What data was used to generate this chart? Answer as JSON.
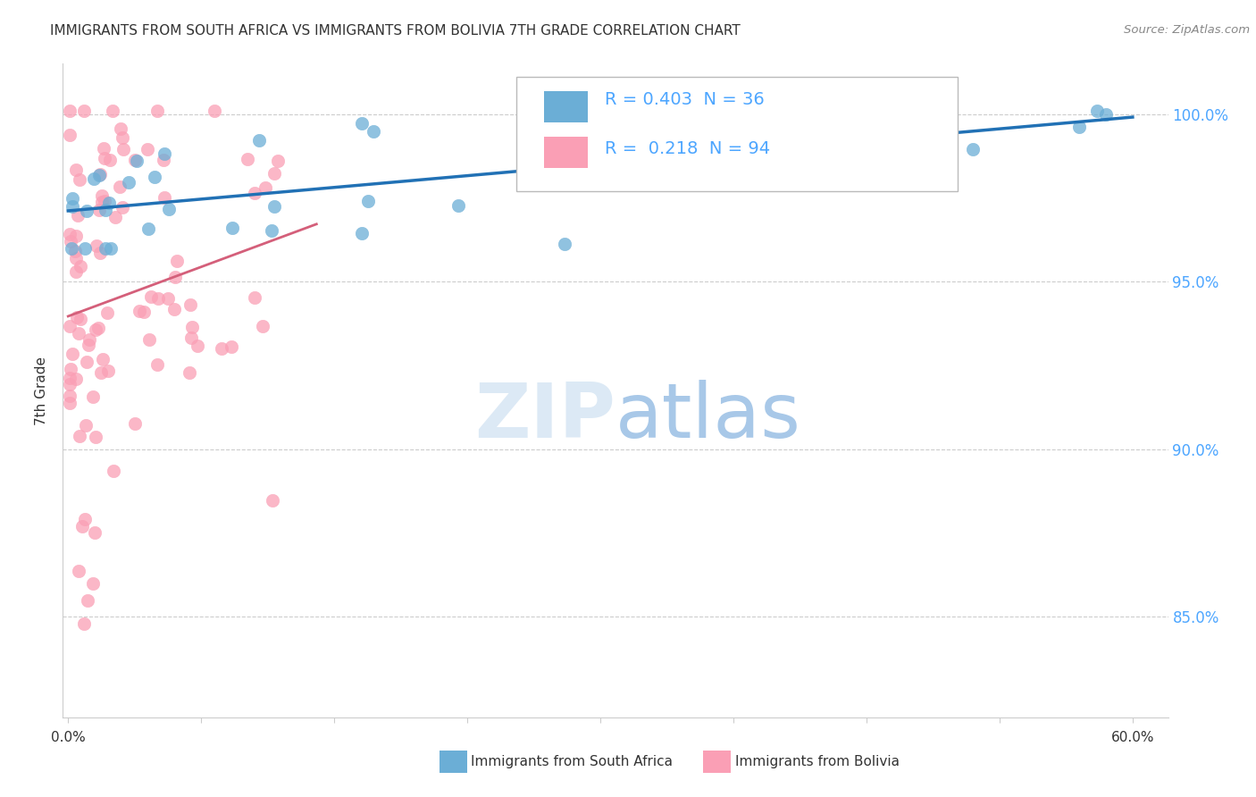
{
  "title": "IMMIGRANTS FROM SOUTH AFRICA VS IMMIGRANTS FROM BOLIVIA 7TH GRADE CORRELATION CHART",
  "source": "Source: ZipAtlas.com",
  "ylabel": "7th Grade",
  "ytick_labels": [
    "85.0%",
    "90.0%",
    "95.0%",
    "100.0%"
  ],
  "ytick_values": [
    0.85,
    0.9,
    0.95,
    1.0
  ],
  "xlim": [
    0.0,
    0.6
  ],
  "ylim": [
    0.82,
    1.015
  ],
  "legend_blue_r": "R = 0.403",
  "legend_blue_n": "N = 36",
  "legend_pink_r": "R =  0.218",
  "legend_pink_n": "N = 94",
  "blue_color": "#6baed6",
  "pink_color": "#fa9fb5",
  "blue_line_color": "#2171b5",
  "pink_line_color": "#d45f7a",
  "grid_color": "#cccccc",
  "text_color": "#333333",
  "right_label_color": "#4da6ff",
  "watermark_zip_color": "#dce9f5",
  "watermark_atlas_color": "#a8c8e8"
}
